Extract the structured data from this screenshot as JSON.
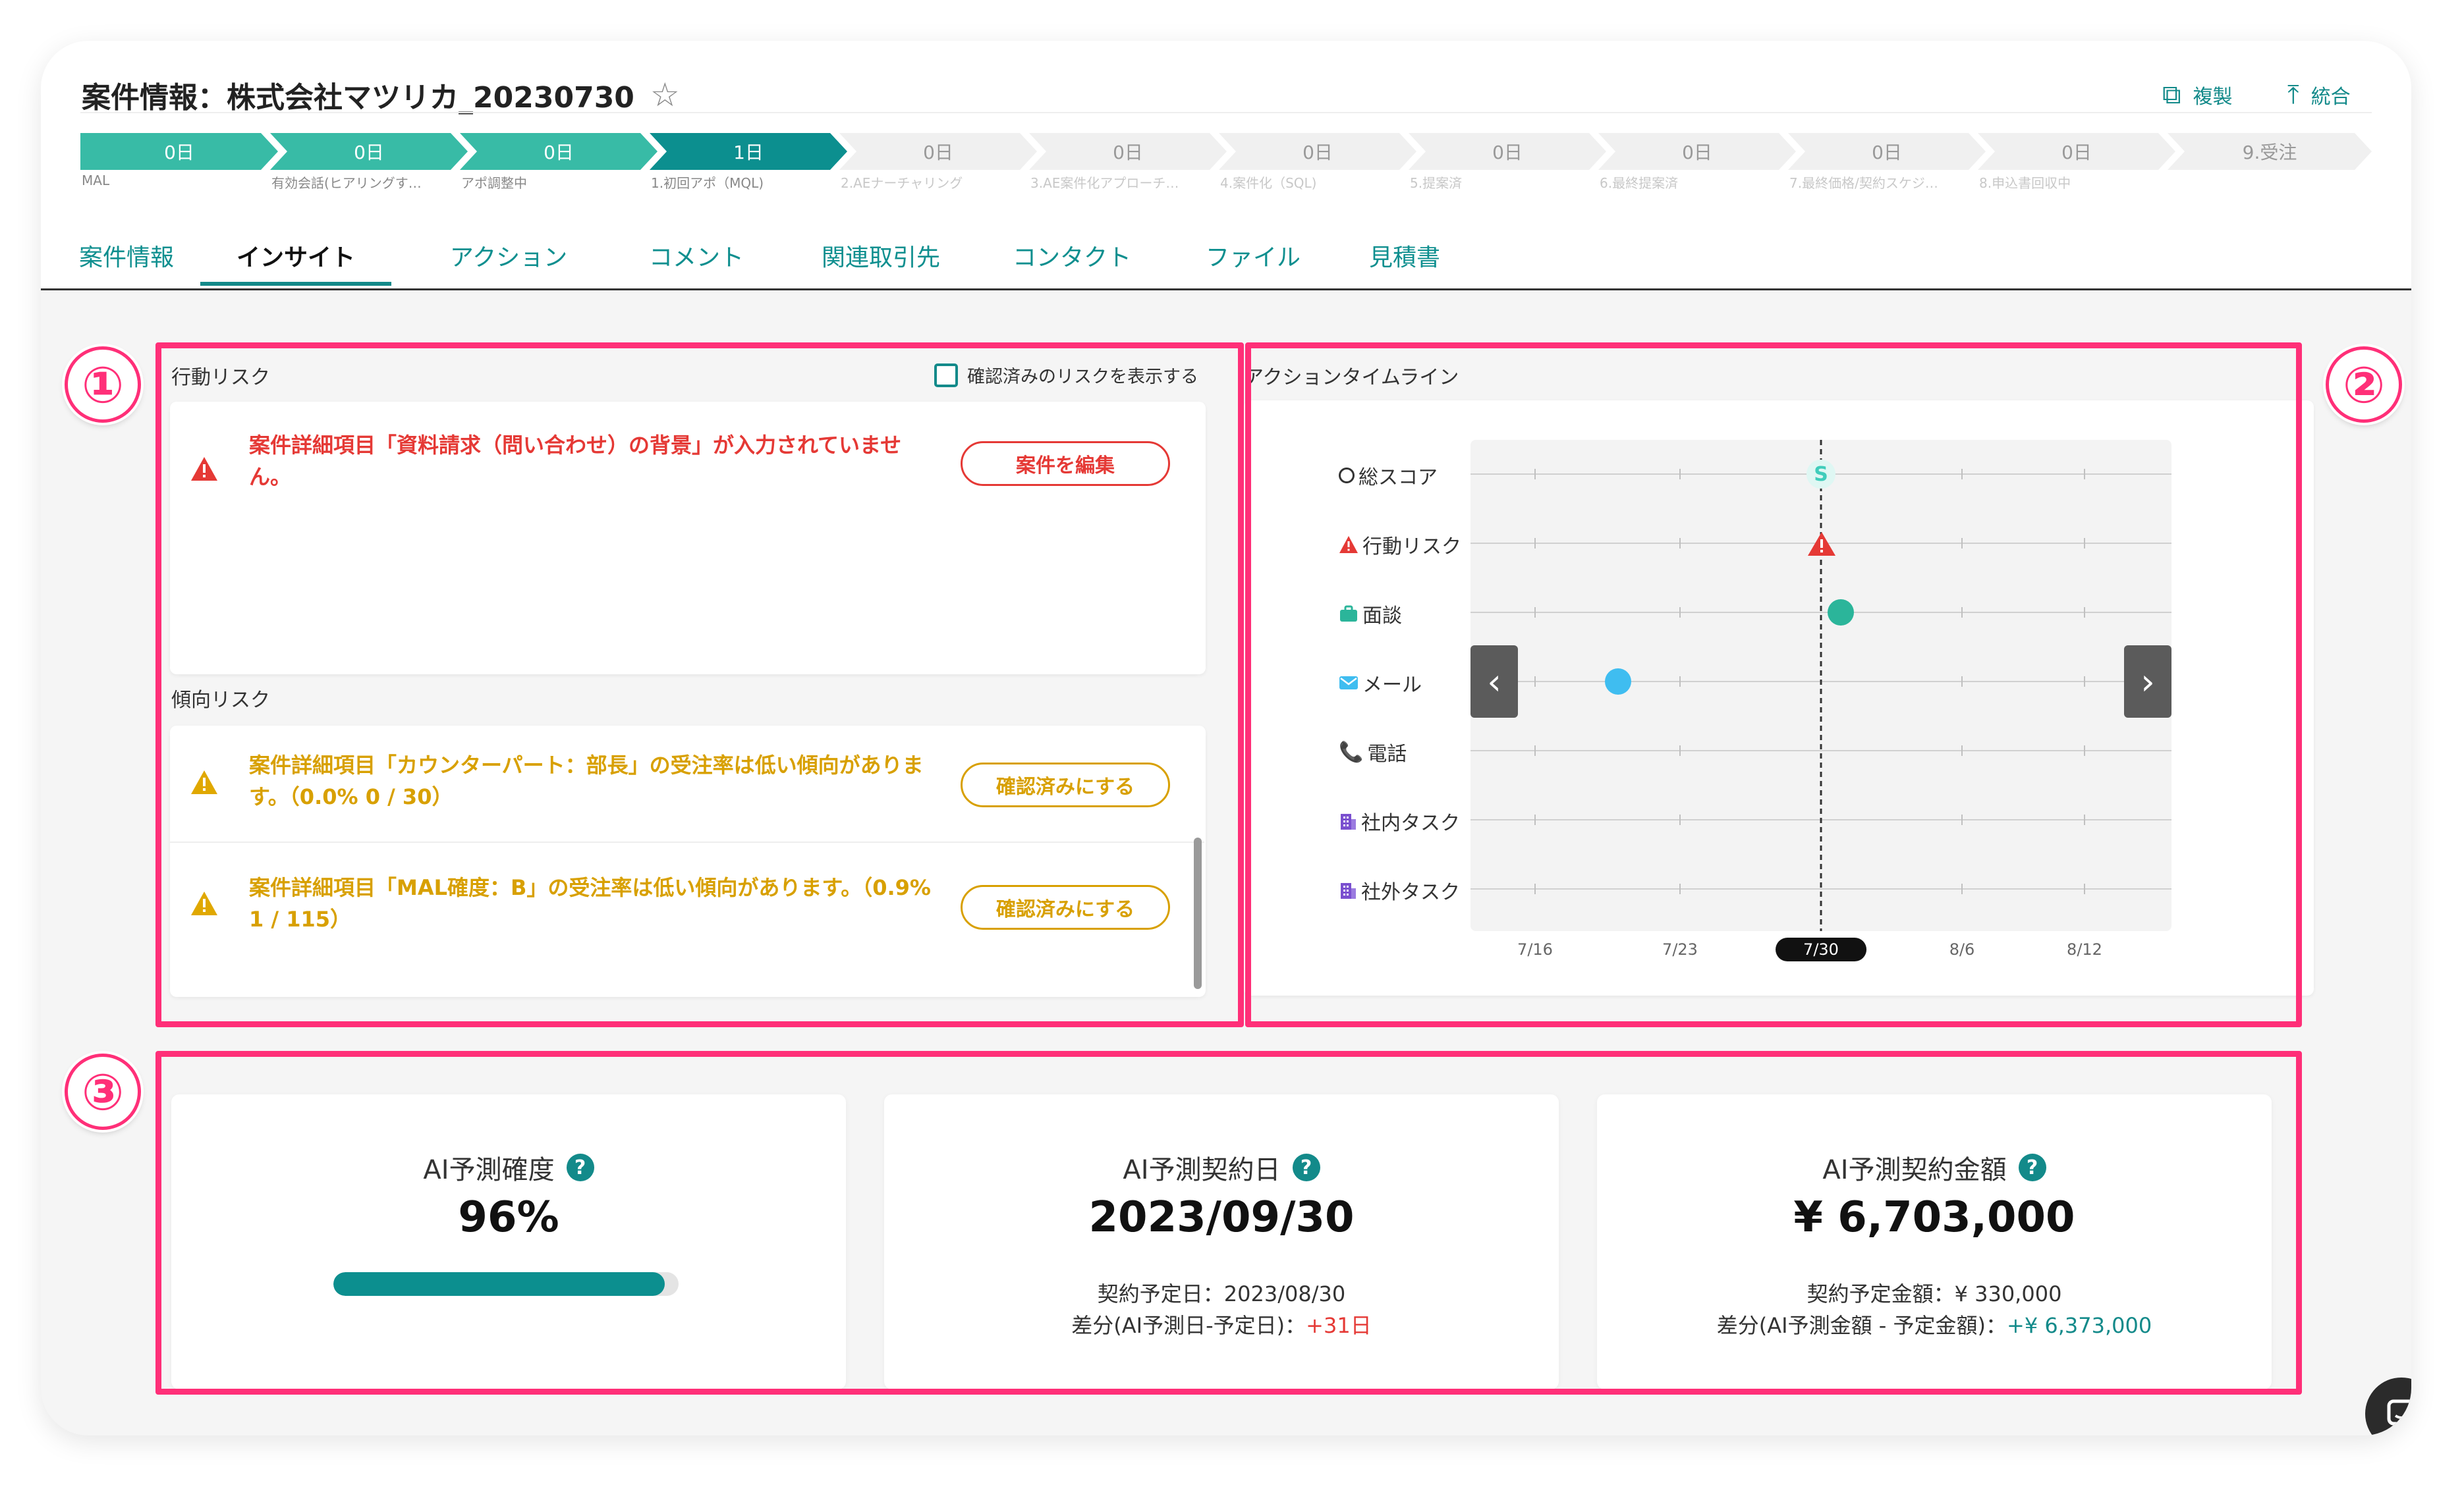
{
  "header": {
    "title": "案件情報：株式会社マツリカ_20230730",
    "duplicate_label": "複製",
    "merge_label": "統合",
    "icons": [
      "star-icon",
      "copy-icon",
      "merge-icon"
    ]
  },
  "stages": [
    {
      "days": "0日",
      "name": "MAL",
      "status": "done"
    },
    {
      "days": "0日",
      "name": "有効会話(ヒアリングす…",
      "status": "done"
    },
    {
      "days": "0日",
      "name": "アポ調整中",
      "status": "done"
    },
    {
      "days": "1日",
      "name": "1.初回アポ（MQL)",
      "status": "current"
    },
    {
      "days": "0日",
      "name": "2.AEナーチャリング",
      "status": "todo"
    },
    {
      "days": "0日",
      "name": "3.AE案件化アプローチ…",
      "status": "todo"
    },
    {
      "days": "0日",
      "name": "4.案件化（SQL)",
      "status": "todo"
    },
    {
      "days": "0日",
      "name": "5.提案済",
      "status": "todo"
    },
    {
      "days": "0日",
      "name": "6.最終提案済",
      "status": "todo"
    },
    {
      "days": "0日",
      "name": "7.最終価格/契約スケジ…",
      "status": "todo"
    },
    {
      "days": "0日",
      "name": "8.申込書回収中",
      "status": "todo"
    },
    {
      "days": "9.受注",
      "name": "",
      "status": "todo"
    }
  ],
  "tabs": [
    "案件情報",
    "インサイト",
    "アクション",
    "コメント",
    "関連取引先",
    "コンタクト",
    "ファイル",
    "見積書"
  ],
  "active_tab": "インサイト",
  "annotations": [
    "①",
    "②",
    "③"
  ],
  "behavior_risk": {
    "label": "行動リスク",
    "show_confirmed_label": "確認済みのリスクを表示する",
    "items": [
      {
        "text": "案件詳細項目「資料請求（問い合わせ）の背景」が入力されていません。",
        "button": "案件を編集"
      }
    ]
  },
  "trend_risk": {
    "label": "傾向リスク",
    "items": [
      {
        "text": "案件詳細項目「カウンターパート：部長」の受注率は低い傾向があります。（0.0% 0 / 30）",
        "button": "確認済みにする"
      },
      {
        "text": "案件詳細項目「MAL確度：B」の受注率は低い傾向があります。（0.9% 1 / 115）",
        "button": "確認済みにする"
      }
    ]
  },
  "timeline": {
    "title": "アクションタイムライン",
    "rows": [
      {
        "label": "総スコア",
        "icon": "circle-icon"
      },
      {
        "label": "行動リスク",
        "icon": "warning-icon"
      },
      {
        "label": "面談",
        "icon": "briefcase-icon"
      },
      {
        "label": "メール",
        "icon": "mail-icon"
      },
      {
        "label": "電話",
        "icon": "phone-icon"
      },
      {
        "label": "社内タスク",
        "icon": "building-icon"
      },
      {
        "label": "社外タスク",
        "icon": "building-icon"
      }
    ],
    "dates": [
      "7/16",
      "7/23",
      "7/30",
      "8/6",
      "8/12"
    ],
    "current_date": "7/30",
    "score_marker": "S",
    "colors": {
      "score": "#4fd4c4",
      "risk": "#e53935",
      "meeting": "#2bb59a",
      "mail": "#3fbdf0",
      "phone": "#1d5fbf",
      "task": "#7a4fcf"
    }
  },
  "metrics": {
    "probability": {
      "title": "AI予測確度",
      "value": "96%",
      "fill": 0.96
    },
    "contract_date": {
      "title": "AI予測契約日",
      "value": "2023/09/30",
      "planned": "契約予定日：2023/08/30",
      "diff_label": "差分(AI予測日-予定日)：",
      "diff_value": "+31日"
    },
    "amount": {
      "title": "AI予測契約金額",
      "value": "¥ 6,703,000",
      "planned": "契約予定金額：¥ 330,000",
      "diff_label": "差分(AI予測金額 - 予定金額)：",
      "diff_value": "+¥ 6,373,000"
    }
  }
}
